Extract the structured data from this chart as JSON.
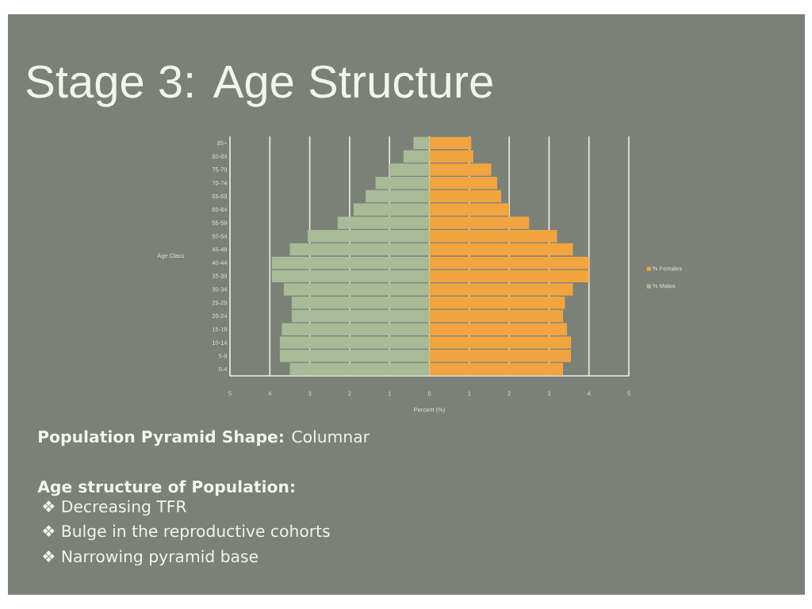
{
  "chart_data": {
    "type": "bar",
    "orientation": "horizontal",
    "stacked": true,
    "title": "Stage 3: Age Structure",
    "xlabel": "Percent (%)",
    "ylabel": "Age Class",
    "categories": [
      "85+",
      "80-84",
      "75-79",
      "70-74",
      "65-69",
      "60-64",
      "55-59",
      "50-54",
      "45-49",
      "40-44",
      "35-39",
      "30-34",
      "25-29",
      "20-24",
      "15-19",
      "10-14",
      "5-9",
      "0-4"
    ],
    "series": [
      {
        "name": "% Females",
        "color": "#f2a440",
        "values": [
          1.05,
          1.1,
          1.55,
          1.7,
          1.8,
          2.0,
          2.5,
          3.2,
          3.6,
          4.0,
          4.0,
          3.6,
          3.4,
          3.35,
          3.45,
          3.55,
          3.55,
          3.35
        ]
      },
      {
        "name": "% Males",
        "color": "#a8ba96",
        "values": [
          -0.4,
          -0.65,
          -1.0,
          -1.35,
          -1.6,
          -1.9,
          -2.3,
          -3.05,
          -3.5,
          -3.95,
          -3.95,
          -3.65,
          -3.45,
          -3.45,
          -3.7,
          -3.75,
          -3.75,
          -3.5
        ]
      }
    ],
    "xlim": [
      -5,
      5
    ],
    "xticks": [
      {
        "value": -5,
        "label": "5"
      },
      {
        "value": -4,
        "label": "4"
      },
      {
        "value": -3,
        "label": "3"
      },
      {
        "value": -2,
        "label": "2"
      },
      {
        "value": -1,
        "label": "1"
      },
      0,
      1,
      2,
      3,
      4,
      5
    ],
    "grid": "x",
    "legend": "right",
    "annotations": [
      "**Population Pyramid Shape:** Columnar",
      "Age structure of Population:",
      "❖ Decreasing TFR",
      "❖ Bulge in the reproductive cohorts",
      "❖ Narrowing pyramid base"
    ]
  }
}
